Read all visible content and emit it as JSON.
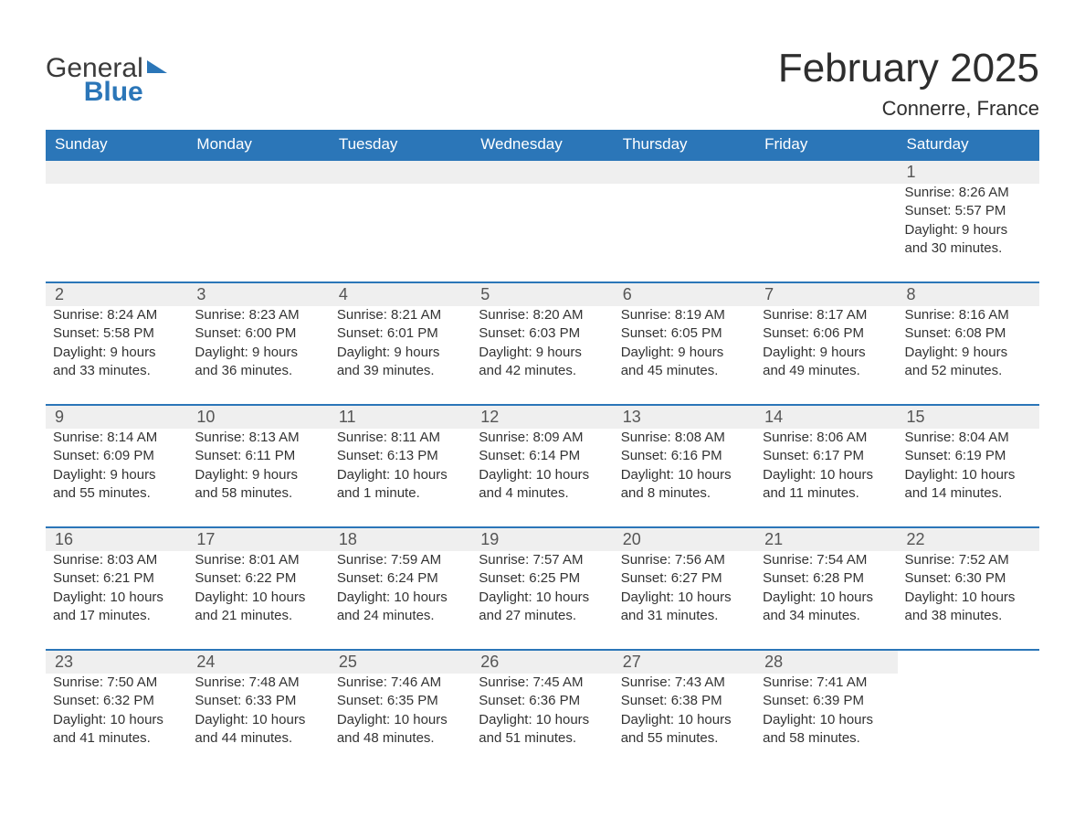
{
  "logo": {
    "word1": "General",
    "word2": "Blue"
  },
  "title": "February 2025",
  "location": "Connerre, France",
  "colors": {
    "header_bg": "#2b76b8",
    "header_text": "#ffffff",
    "daynum_bg": "#efefef",
    "row_border": "#2b76b8",
    "body_text": "#333333",
    "logo_blue": "#2b76b8",
    "page_bg": "#ffffff"
  },
  "weekdays": [
    "Sunday",
    "Monday",
    "Tuesday",
    "Wednesday",
    "Thursday",
    "Friday",
    "Saturday"
  ],
  "weeks": [
    [
      null,
      null,
      null,
      null,
      null,
      null,
      {
        "n": "1",
        "sunrise": "Sunrise: 8:26 AM",
        "sunset": "Sunset: 5:57 PM",
        "day1": "Daylight: 9 hours",
        "day2": "and 30 minutes."
      }
    ],
    [
      {
        "n": "2",
        "sunrise": "Sunrise: 8:24 AM",
        "sunset": "Sunset: 5:58 PM",
        "day1": "Daylight: 9 hours",
        "day2": "and 33 minutes."
      },
      {
        "n": "3",
        "sunrise": "Sunrise: 8:23 AM",
        "sunset": "Sunset: 6:00 PM",
        "day1": "Daylight: 9 hours",
        "day2": "and 36 minutes."
      },
      {
        "n": "4",
        "sunrise": "Sunrise: 8:21 AM",
        "sunset": "Sunset: 6:01 PM",
        "day1": "Daylight: 9 hours",
        "day2": "and 39 minutes."
      },
      {
        "n": "5",
        "sunrise": "Sunrise: 8:20 AM",
        "sunset": "Sunset: 6:03 PM",
        "day1": "Daylight: 9 hours",
        "day2": "and 42 minutes."
      },
      {
        "n": "6",
        "sunrise": "Sunrise: 8:19 AM",
        "sunset": "Sunset: 6:05 PM",
        "day1": "Daylight: 9 hours",
        "day2": "and 45 minutes."
      },
      {
        "n": "7",
        "sunrise": "Sunrise: 8:17 AM",
        "sunset": "Sunset: 6:06 PM",
        "day1": "Daylight: 9 hours",
        "day2": "and 49 minutes."
      },
      {
        "n": "8",
        "sunrise": "Sunrise: 8:16 AM",
        "sunset": "Sunset: 6:08 PM",
        "day1": "Daylight: 9 hours",
        "day2": "and 52 minutes."
      }
    ],
    [
      {
        "n": "9",
        "sunrise": "Sunrise: 8:14 AM",
        "sunset": "Sunset: 6:09 PM",
        "day1": "Daylight: 9 hours",
        "day2": "and 55 minutes."
      },
      {
        "n": "10",
        "sunrise": "Sunrise: 8:13 AM",
        "sunset": "Sunset: 6:11 PM",
        "day1": "Daylight: 9 hours",
        "day2": "and 58 minutes."
      },
      {
        "n": "11",
        "sunrise": "Sunrise: 8:11 AM",
        "sunset": "Sunset: 6:13 PM",
        "day1": "Daylight: 10 hours",
        "day2": "and 1 minute."
      },
      {
        "n": "12",
        "sunrise": "Sunrise: 8:09 AM",
        "sunset": "Sunset: 6:14 PM",
        "day1": "Daylight: 10 hours",
        "day2": "and 4 minutes."
      },
      {
        "n": "13",
        "sunrise": "Sunrise: 8:08 AM",
        "sunset": "Sunset: 6:16 PM",
        "day1": "Daylight: 10 hours",
        "day2": "and 8 minutes."
      },
      {
        "n": "14",
        "sunrise": "Sunrise: 8:06 AM",
        "sunset": "Sunset: 6:17 PM",
        "day1": "Daylight: 10 hours",
        "day2": "and 11 minutes."
      },
      {
        "n": "15",
        "sunrise": "Sunrise: 8:04 AM",
        "sunset": "Sunset: 6:19 PM",
        "day1": "Daylight: 10 hours",
        "day2": "and 14 minutes."
      }
    ],
    [
      {
        "n": "16",
        "sunrise": "Sunrise: 8:03 AM",
        "sunset": "Sunset: 6:21 PM",
        "day1": "Daylight: 10 hours",
        "day2": "and 17 minutes."
      },
      {
        "n": "17",
        "sunrise": "Sunrise: 8:01 AM",
        "sunset": "Sunset: 6:22 PM",
        "day1": "Daylight: 10 hours",
        "day2": "and 21 minutes."
      },
      {
        "n": "18",
        "sunrise": "Sunrise: 7:59 AM",
        "sunset": "Sunset: 6:24 PM",
        "day1": "Daylight: 10 hours",
        "day2": "and 24 minutes."
      },
      {
        "n": "19",
        "sunrise": "Sunrise: 7:57 AM",
        "sunset": "Sunset: 6:25 PM",
        "day1": "Daylight: 10 hours",
        "day2": "and 27 minutes."
      },
      {
        "n": "20",
        "sunrise": "Sunrise: 7:56 AM",
        "sunset": "Sunset: 6:27 PM",
        "day1": "Daylight: 10 hours",
        "day2": "and 31 minutes."
      },
      {
        "n": "21",
        "sunrise": "Sunrise: 7:54 AM",
        "sunset": "Sunset: 6:28 PM",
        "day1": "Daylight: 10 hours",
        "day2": "and 34 minutes."
      },
      {
        "n": "22",
        "sunrise": "Sunrise: 7:52 AM",
        "sunset": "Sunset: 6:30 PM",
        "day1": "Daylight: 10 hours",
        "day2": "and 38 minutes."
      }
    ],
    [
      {
        "n": "23",
        "sunrise": "Sunrise: 7:50 AM",
        "sunset": "Sunset: 6:32 PM",
        "day1": "Daylight: 10 hours",
        "day2": "and 41 minutes."
      },
      {
        "n": "24",
        "sunrise": "Sunrise: 7:48 AM",
        "sunset": "Sunset: 6:33 PM",
        "day1": "Daylight: 10 hours",
        "day2": "and 44 minutes."
      },
      {
        "n": "25",
        "sunrise": "Sunrise: 7:46 AM",
        "sunset": "Sunset: 6:35 PM",
        "day1": "Daylight: 10 hours",
        "day2": "and 48 minutes."
      },
      {
        "n": "26",
        "sunrise": "Sunrise: 7:45 AM",
        "sunset": "Sunset: 6:36 PM",
        "day1": "Daylight: 10 hours",
        "day2": "and 51 minutes."
      },
      {
        "n": "27",
        "sunrise": "Sunrise: 7:43 AM",
        "sunset": "Sunset: 6:38 PM",
        "day1": "Daylight: 10 hours",
        "day2": "and 55 minutes."
      },
      {
        "n": "28",
        "sunrise": "Sunrise: 7:41 AM",
        "sunset": "Sunset: 6:39 PM",
        "day1": "Daylight: 10 hours",
        "day2": "and 58 minutes."
      },
      null
    ]
  ]
}
